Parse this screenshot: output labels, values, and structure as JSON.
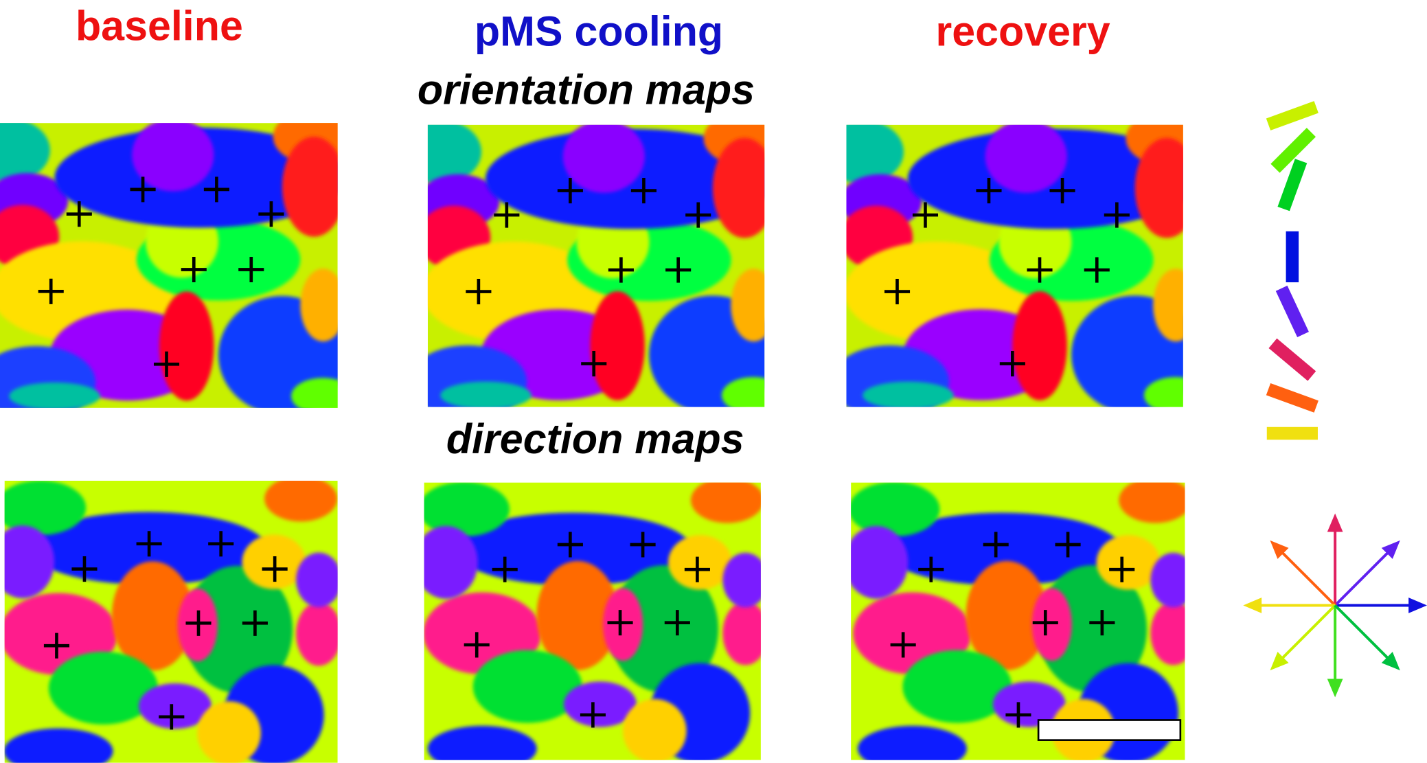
{
  "header": {
    "conditions": [
      "baseline",
      "pMS cooling",
      "recovery"
    ]
  },
  "sections": {
    "orientation": "orientation maps",
    "direction": "direction maps"
  }
}
